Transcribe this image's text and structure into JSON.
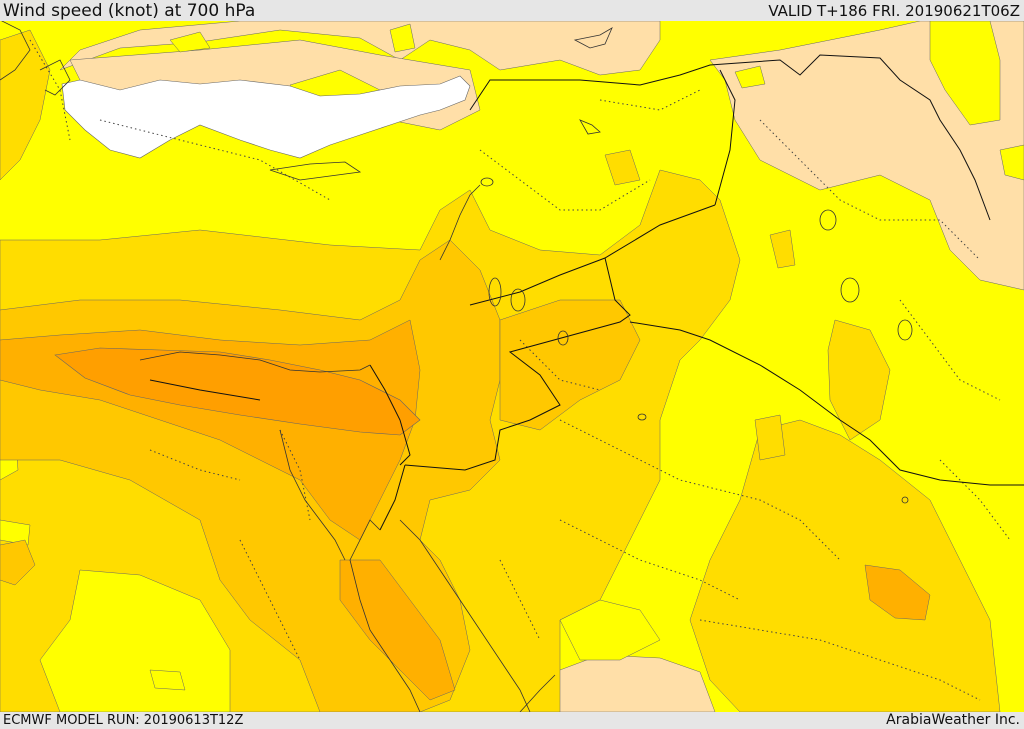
{
  "header": {
    "title": "Wind speed (knot) at 700 hPa",
    "valid": "VALID T+186 FRI. 20190621T06Z"
  },
  "footer": {
    "model_run": "ECMWF MODEL RUN: 20190613T12Z",
    "credit": "ArabiaWeather Inc."
  },
  "colors": {
    "calm": "#ffffff",
    "light": "#ffdfa8",
    "yellow": "#ffff00",
    "gold": "#ffdd00",
    "amber": "#ffc800",
    "orange": "#ffb000",
    "dark_orange": "#ff9f00",
    "coast": "#333333",
    "border": "#111111"
  },
  "map": {
    "parameter": "wind speed",
    "units": "knot",
    "level": "700 hPa",
    "legend": "none"
  }
}
